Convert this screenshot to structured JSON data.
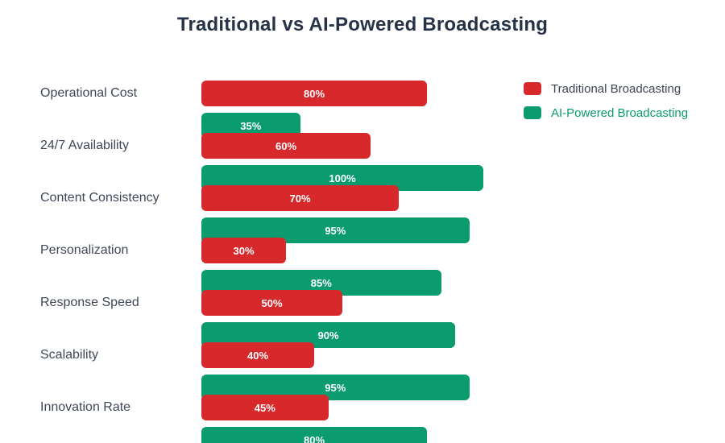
{
  "chart_data": {
    "type": "bar",
    "orientation": "horizontal",
    "title": "Traditional vs AI-Powered Broadcasting",
    "categories": [
      "Operational Cost",
      "24/7 Availability",
      "Content Consistency",
      "Personalization",
      "Response Speed",
      "Scalability",
      "Innovation Rate"
    ],
    "series": [
      {
        "name": "Traditional Broadcasting",
        "color": "#d7282c",
        "values": [
          80,
          60,
          70,
          30,
          50,
          40,
          45
        ]
      },
      {
        "name": "AI-Powered Broadcasting",
        "color": "#0a9b6e",
        "values": [
          35,
          100,
          95,
          85,
          90,
          95,
          80
        ]
      }
    ],
    "value_label_format": "{value}%",
    "value_label_color": "#ffffff",
    "xlim": [
      0,
      100
    ],
    "grid": false,
    "axis_ticks_visible": false,
    "legend_position": "top-right"
  },
  "legend": {
    "items": [
      {
        "label": "Traditional Broadcasting",
        "swatch_color": "#d7282c",
        "text_color": "#3d4454"
      },
      {
        "label": "AI-Powered Broadcasting",
        "swatch_color": "#0a9b6e",
        "text_color": "#0a9b6e"
      }
    ]
  },
  "style": {
    "title_color": "#263347",
    "category_label_color": "#3f4756",
    "background": "#ffffff"
  }
}
